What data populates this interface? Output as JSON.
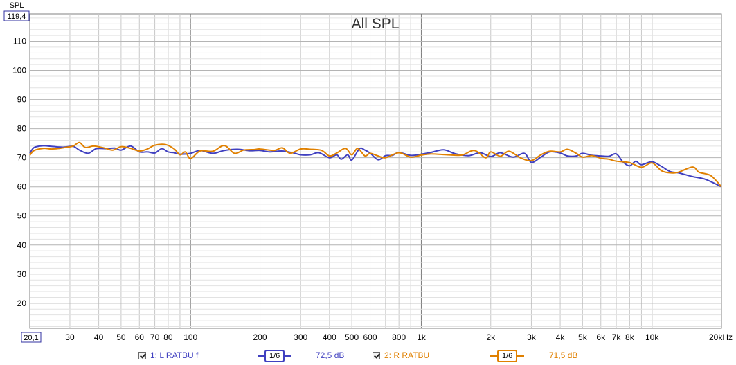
{
  "chart_data": {
    "type": "line",
    "title": "All SPL",
    "ylabel": "SPL",
    "xlabel": "",
    "x_scale": "log",
    "xlim": [
      20.1,
      20000
    ],
    "ylim": [
      11.4,
      119.4
    ],
    "ylim_labels": {
      "top": "119,4",
      "left": "20,1"
    },
    "y_ticks": [
      "20",
      "30",
      "40",
      "50",
      "60",
      "70",
      "80",
      "90",
      "100",
      "110"
    ],
    "x_tick_labels": [
      {
        "value": 30,
        "label": "30"
      },
      {
        "value": 40,
        "label": "40"
      },
      {
        "value": 50,
        "label": "50"
      },
      {
        "value": 60,
        "label": "60"
      },
      {
        "value": 70,
        "label": "70"
      },
      {
        "value": 80,
        "label": "80"
      },
      {
        "value": 100,
        "label": "100"
      },
      {
        "value": 200,
        "label": "200"
      },
      {
        "value": 300,
        "label": "300"
      },
      {
        "value": 400,
        "label": "400"
      },
      {
        "value": 500,
        "label": "500"
      },
      {
        "value": 600,
        "label": "600"
      },
      {
        "value": 800,
        "label": "800"
      },
      {
        "value": 1000,
        "label": "1k"
      },
      {
        "value": 2000,
        "label": "2k"
      },
      {
        "value": 3000,
        "label": "3k"
      },
      {
        "value": 4000,
        "label": "4k"
      },
      {
        "value": 5000,
        "label": "5k"
      },
      {
        "value": 6000,
        "label": "6k"
      },
      {
        "value": 7000,
        "label": "7k"
      },
      {
        "value": 8000,
        "label": "8k"
      },
      {
        "value": 10000,
        "label": "10k"
      },
      {
        "value": 20000,
        "label": "20kHz"
      }
    ],
    "grid": true,
    "legend_position": "bottom",
    "series": [
      {
        "name": "1: L RATBU f",
        "color": "#4040c0",
        "smoothing": "1/6",
        "level": "72,5 dB",
        "x": [
          20.1,
          21,
          23,
          25,
          28,
          31,
          33,
          36,
          39,
          43,
          47,
          50,
          55,
          60,
          65,
          70,
          75,
          80,
          85,
          90,
          100,
          110,
          125,
          140,
          160,
          180,
          200,
          220,
          250,
          280,
          300,
          330,
          360,
          400,
          430,
          450,
          480,
          500,
          540,
          570,
          600,
          650,
          700,
          750,
          800,
          900,
          1000,
          1100,
          1250,
          1400,
          1600,
          1800,
          2000,
          2200,
          2500,
          2800,
          3000,
          3300,
          3600,
          4000,
          4300,
          4700,
          5000,
          5500,
          6000,
          6500,
          7000,
          7500,
          8000,
          8500,
          9000,
          10000,
          11000,
          12000,
          13000,
          15000,
          17000,
          20000
        ],
        "y": [
          71.5,
          73.5,
          74.1,
          73.9,
          73.6,
          73.9,
          72.6,
          71.5,
          73.1,
          73.1,
          73.3,
          72.6,
          74.0,
          72.0,
          72.0,
          71.6,
          73.1,
          72.0,
          71.7,
          71.2,
          71.5,
          72.5,
          71.5,
          72.5,
          72.9,
          72.4,
          72.5,
          72.0,
          72.3,
          71.6,
          71.0,
          71.0,
          71.7,
          70.0,
          71.0,
          69.5,
          71.0,
          69.2,
          73.1,
          72.6,
          71.6,
          69.3,
          70.7,
          70.8,
          71.8,
          70.8,
          71.2,
          71.8,
          72.7,
          71.4,
          70.7,
          71.7,
          70.4,
          71.7,
          70.2,
          71.5,
          68.4,
          70.2,
          72.0,
          71.6,
          70.6,
          70.6,
          71.5,
          70.8,
          70.6,
          70.5,
          71.3,
          68.5,
          67.2,
          68.8,
          67.6,
          68.6,
          67.0,
          65.2,
          64.8,
          63.5,
          62.6,
          60.0
        ]
      },
      {
        "name": "2: R RATBU",
        "color": "#e08000",
        "smoothing": "1/6",
        "level": "71,5 dB",
        "x": [
          20.1,
          21,
          23,
          25,
          27,
          29,
          31,
          33,
          35,
          38,
          42,
          46,
          50,
          55,
          60,
          65,
          70,
          78,
          85,
          90,
          95,
          100,
          110,
          125,
          140,
          155,
          170,
          190,
          200,
          230,
          250,
          270,
          300,
          330,
          370,
          400,
          430,
          470,
          500,
          530,
          570,
          600,
          650,
          700,
          800,
          900,
          1000,
          1100,
          1300,
          1500,
          1700,
          1900,
          2000,
          2200,
          2400,
          2700,
          3000,
          3300,
          3600,
          4000,
          4300,
          4700,
          5000,
          5500,
          6000,
          6500,
          7000,
          8000,
          9000,
          10000,
          11000,
          12000,
          13000,
          15000,
          16000,
          18000,
          20000
        ],
        "y": [
          70.8,
          72.5,
          73.2,
          73.0,
          73.2,
          73.6,
          74.0,
          75.2,
          73.5,
          74.0,
          73.4,
          72.6,
          73.8,
          73.2,
          72.3,
          73.0,
          74.3,
          74.5,
          73.0,
          71.0,
          72.0,
          69.7,
          72.3,
          72.2,
          74.2,
          71.5,
          72.6,
          72.8,
          73.0,
          72.5,
          73.4,
          71.5,
          73.0,
          72.9,
          72.5,
          70.6,
          71.6,
          73.2,
          71.0,
          73.2,
          70.6,
          71.5,
          70.6,
          70.0,
          71.7,
          70.2,
          70.9,
          71.3,
          71.0,
          70.9,
          72.5,
          70.0,
          72.0,
          70.5,
          72.2,
          69.9,
          69.0,
          71.0,
          72.2,
          72.0,
          72.9,
          71.5,
          70.2,
          70.7,
          69.8,
          69.5,
          68.8,
          68.3,
          66.7,
          68.2,
          65.5,
          64.8,
          65.0,
          66.8,
          65.0,
          63.8,
          60.0
        ]
      }
    ]
  }
}
